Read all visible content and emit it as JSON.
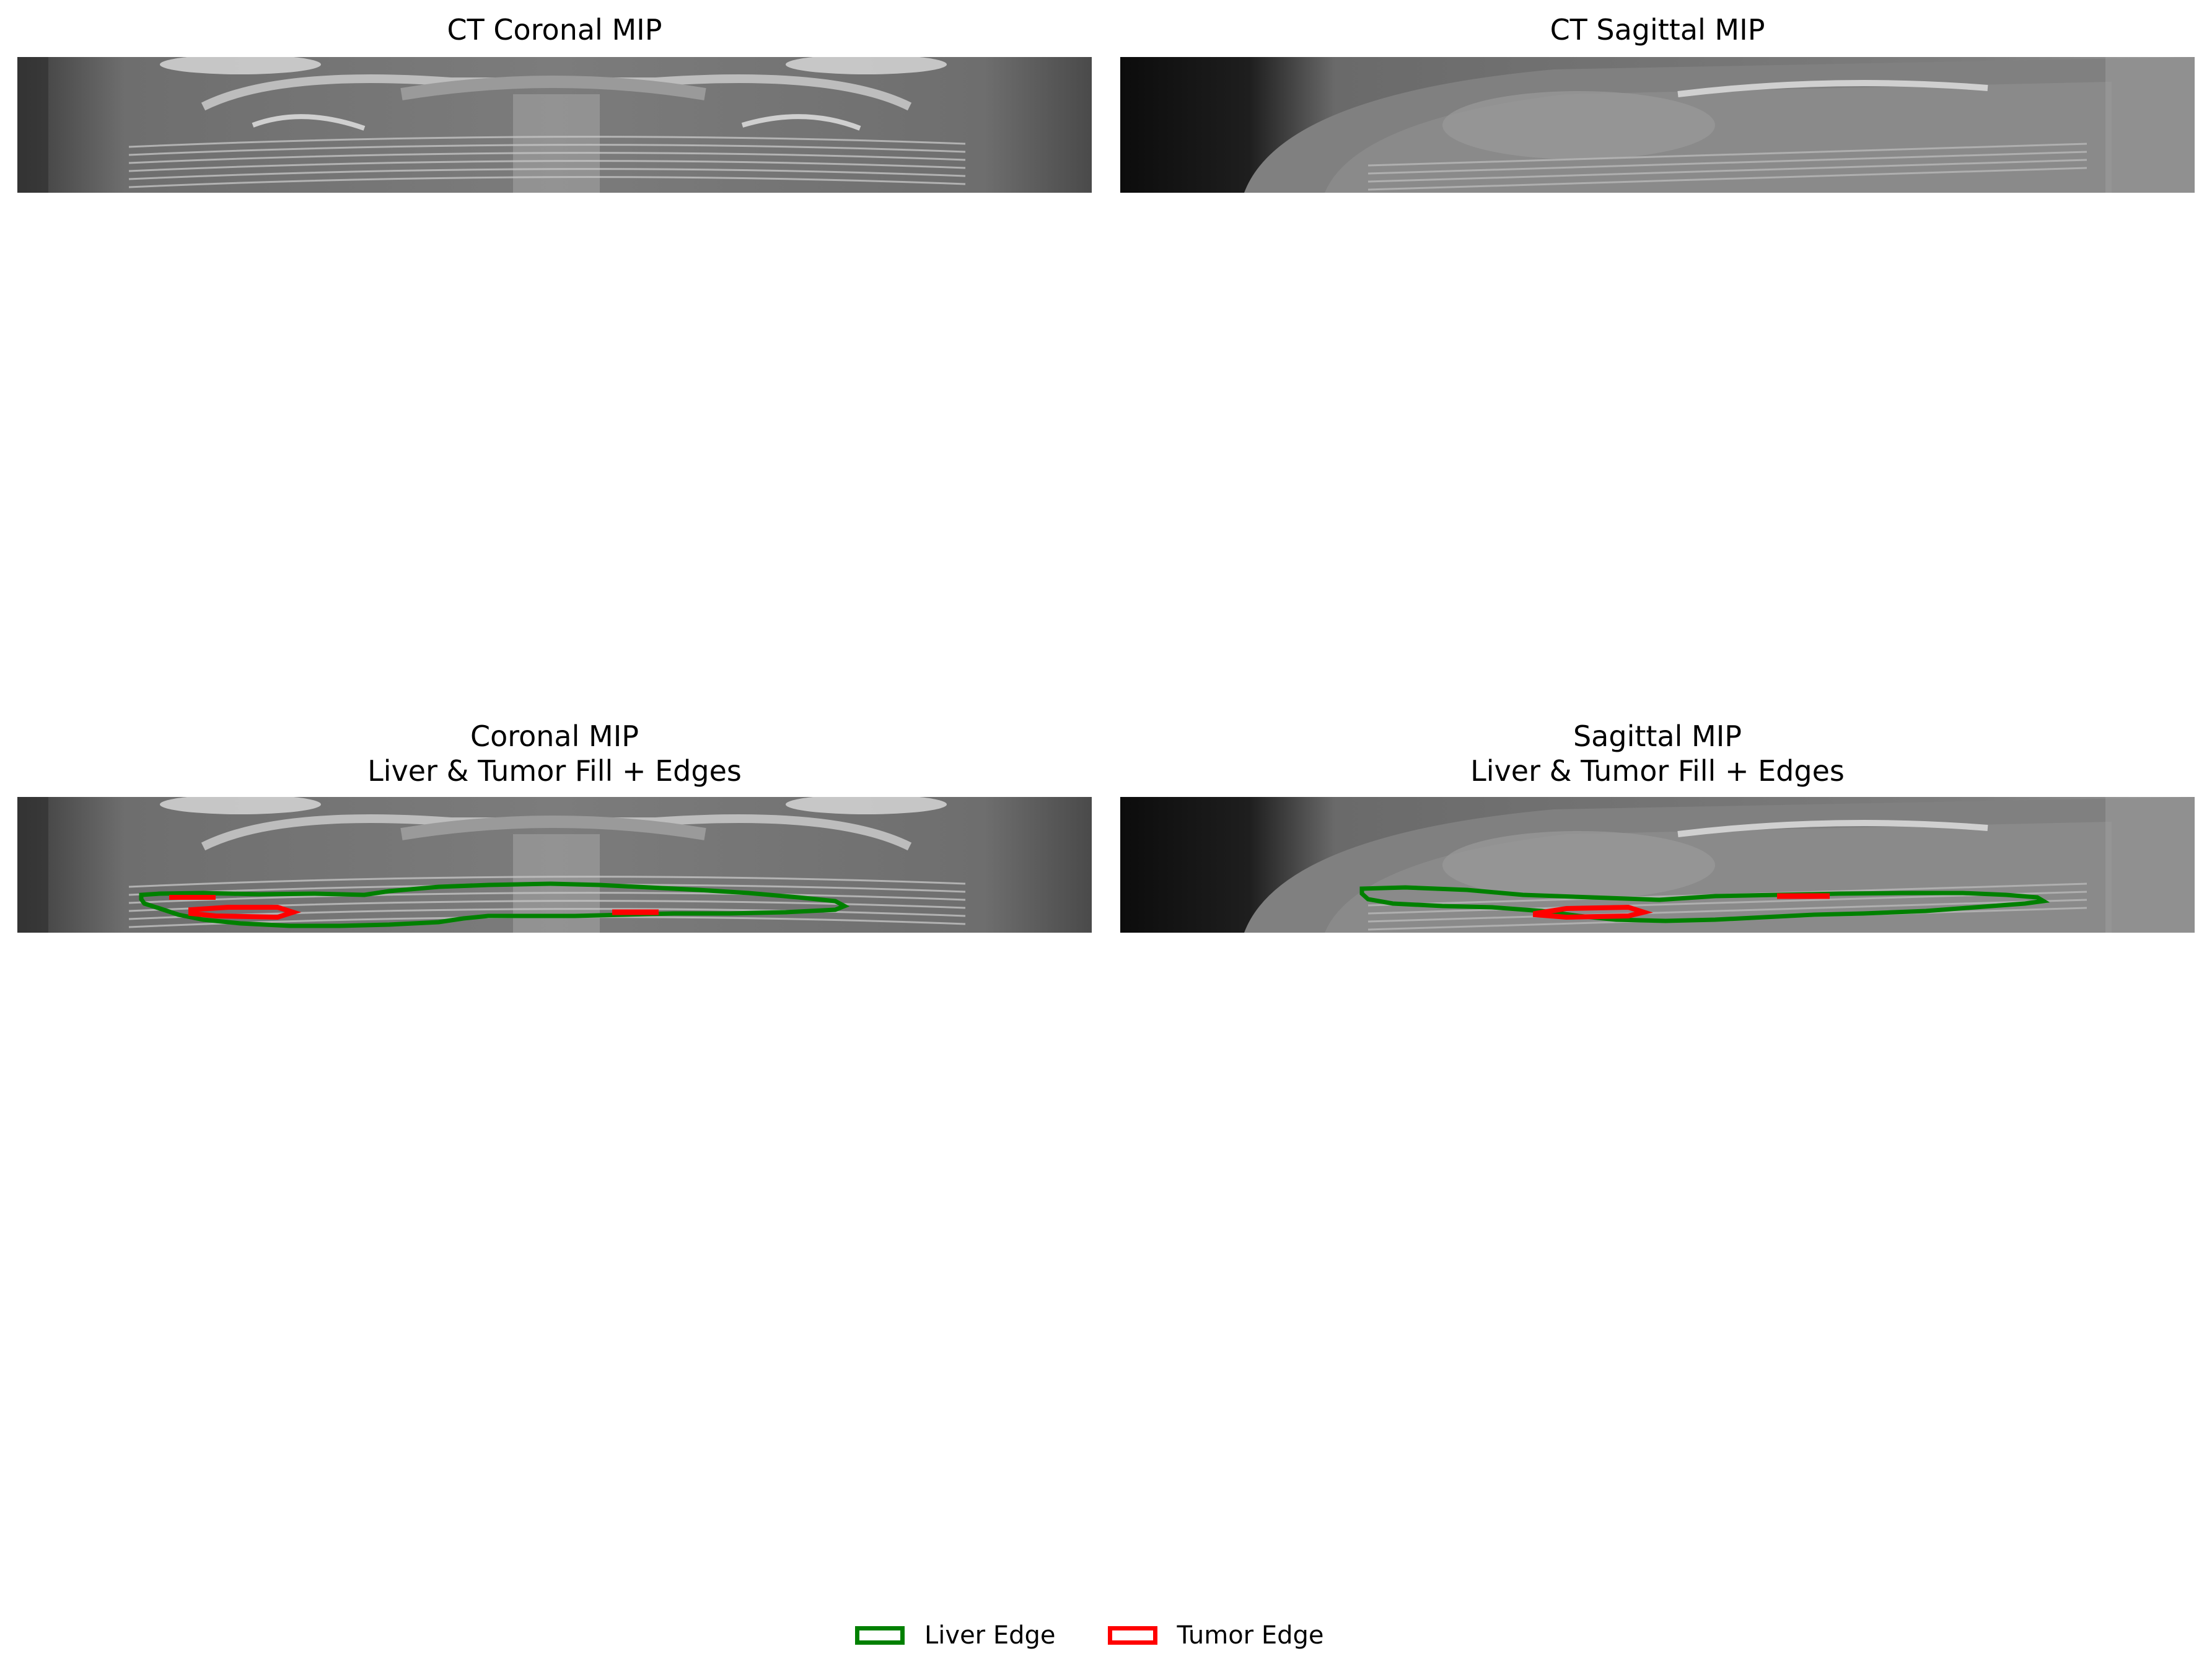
{
  "panels": {
    "top_left": {
      "title": "CT Coronal MIP"
    },
    "top_right": {
      "title": "CT Sagittal MIP"
    },
    "bottom_left": {
      "title_line1": "Coronal MIP",
      "title_line2": "Liver & Tumor Fill + Edges"
    },
    "bottom_right": {
      "title_line1": "Sagittal MIP",
      "title_line2": "Liver & Tumor Fill + Edges"
    }
  },
  "legend": {
    "items": [
      {
        "label": "Liver Edge",
        "color": "#008000"
      },
      {
        "label": "Tumor Edge",
        "color": "#ff0000"
      }
    ]
  },
  "colors": {
    "liver": "#008000",
    "tumor": "#ff0000"
  }
}
